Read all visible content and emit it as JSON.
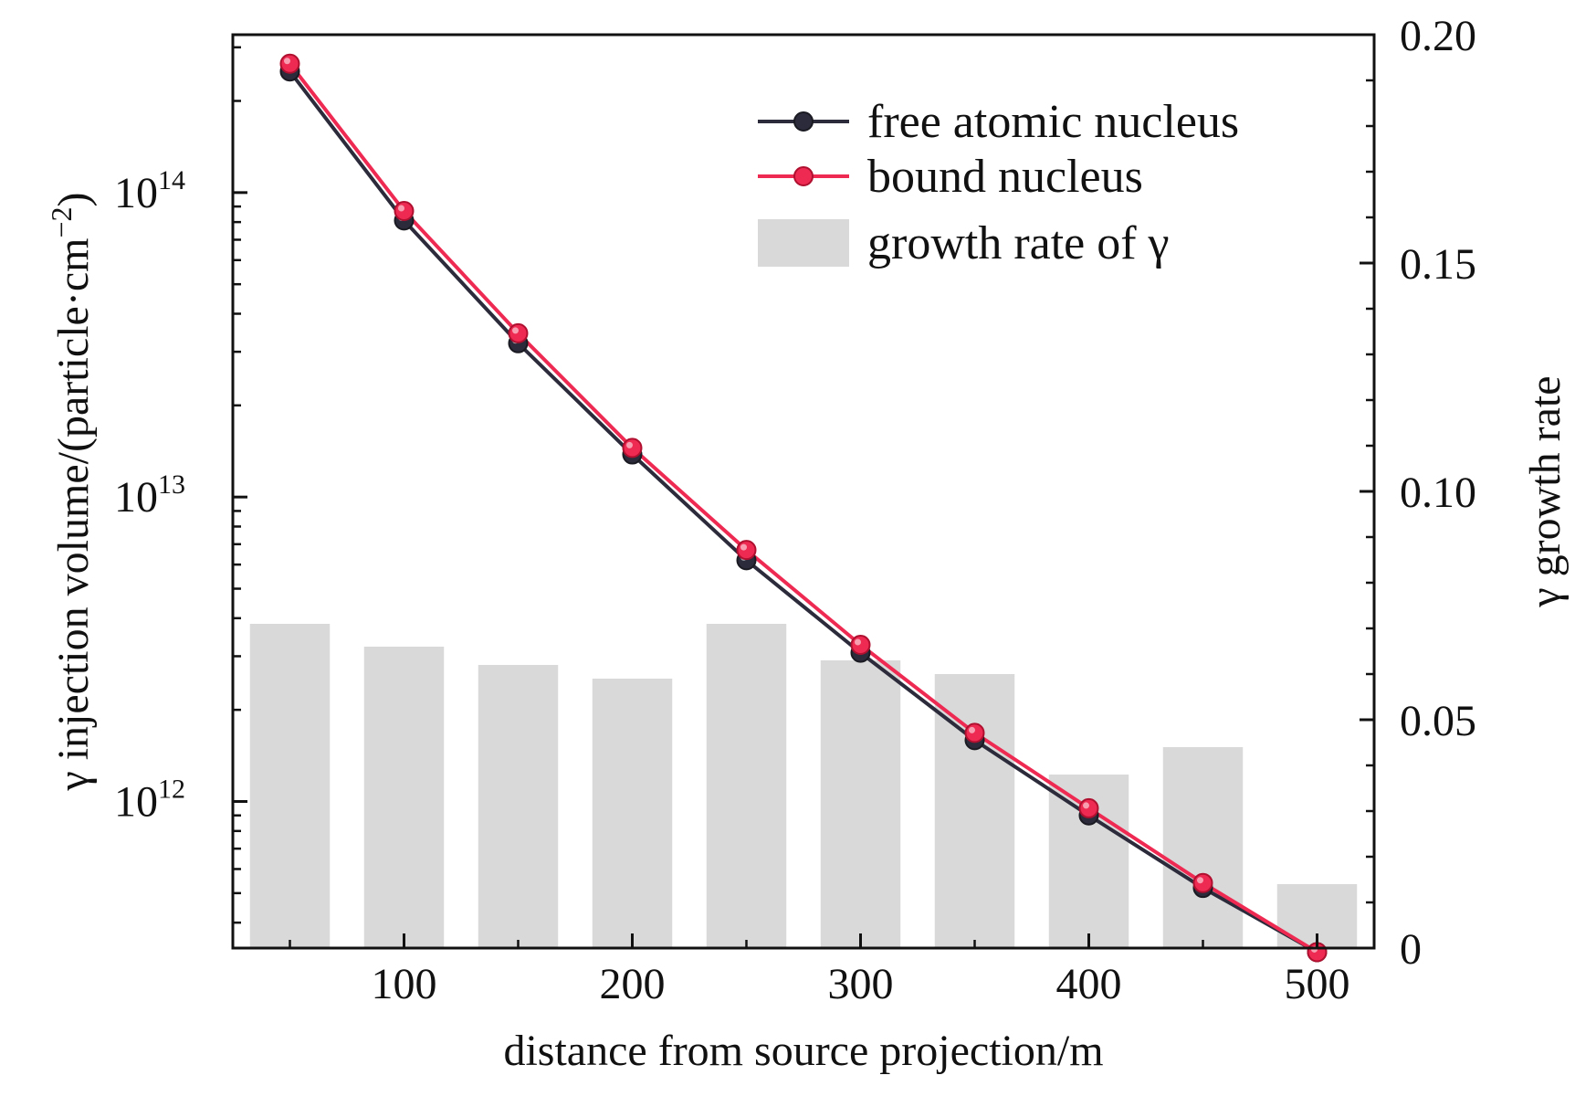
{
  "chart_data": {
    "type": "bar+line",
    "x_axis": {
      "label": "distance from source projection/m",
      "range": [
        25,
        525
      ],
      "ticks": [
        100,
        200,
        300,
        400,
        500
      ],
      "tick_labels": [
        "100",
        "200",
        "300",
        "400",
        "500"
      ]
    },
    "y_axis_left": {
      "label": "γ injection volume/(particle·cm",
      "label_superscript": "−2",
      "label_end": ")",
      "scale": "log",
      "range": [
        330000000000,
        330000000000000
      ],
      "tick_labels": [
        {
          "value": 1000000000000.0,
          "base": "10",
          "exp": "12"
        },
        {
          "value": 10000000000000.0,
          "base": "10",
          "exp": "13"
        },
        {
          "value": 100000000000000.0,
          "base": "10",
          "exp": "14"
        }
      ]
    },
    "y_axis_right": {
      "label": "γ growth rate",
      "scale": "linear",
      "range": [
        0,
        0.2
      ],
      "ticks": [
        0,
        0.05,
        0.1,
        0.15,
        0.2
      ],
      "tick_labels": [
        "0",
        "0.05",
        "0.10",
        "0.15",
        "0.20"
      ]
    },
    "x": [
      50,
      100,
      150,
      200,
      250,
      300,
      350,
      400,
      450,
      500
    ],
    "series": [
      {
        "name": "free atomic nucleus",
        "type": "line",
        "axis": "left",
        "color": "#2b2b3b",
        "values": [
          250000000000000,
          81000000000000,
          32000000000000,
          13800000000000,
          6200000000000,
          3080000000000,
          1590000000000,
          900000000000,
          520000000000,
          320000000000
        ]
      },
      {
        "name": "bound nucleus",
        "type": "line",
        "axis": "right_hidden",
        "axis_note": "left",
        "axis_ref": "left",
        "color": "#ee2a52",
        "values": [
          265000000000000,
          87000000000000,
          34500000000000,
          14500000000000,
          6700000000000,
          3270000000000,
          1680000000000,
          950000000000,
          540000000000,
          320000000000
        ]
      },
      {
        "name": "growth rate of γ",
        "type": "bar",
        "axis": "right",
        "color": "#d9d9d9",
        "values": [
          0.071,
          0.066,
          0.062,
          0.059,
          0.071,
          0.063,
          0.06,
          0.038,
          0.044,
          0.014
        ]
      }
    ],
    "legend": {
      "position": "top-right",
      "entries": [
        "free atomic nucleus",
        "bound nucleus",
        "growth rate of γ"
      ]
    },
    "grid": false
  }
}
